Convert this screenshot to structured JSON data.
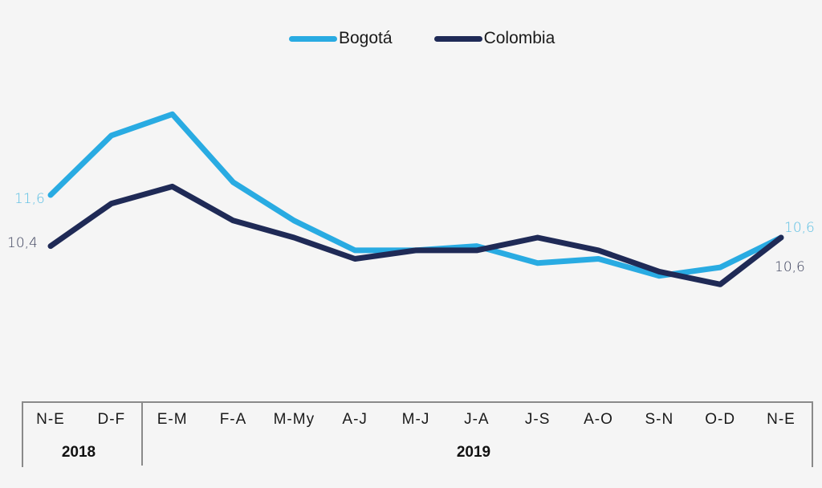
{
  "chart_data": {
    "type": "line",
    "title": "",
    "xlabel": "",
    "ylabel": "",
    "legend_position": "top-center",
    "grid": false,
    "categories": [
      "N-E",
      "D-F",
      "E-M",
      "F-A",
      "M-My",
      "A-J",
      "M-J",
      "J-A",
      "J-S",
      "A-O",
      "S-N",
      "O-D",
      "N-E"
    ],
    "year_groups": [
      {
        "label": "2018",
        "categories_count": 2
      },
      {
        "label": "2019",
        "categories_count": 11
      }
    ],
    "ylim": [
      8.5,
      14.5
    ],
    "series": [
      {
        "name": "Bogotá",
        "color": "#29abe2",
        "values": [
          11.6,
          13.0,
          13.5,
          11.9,
          11.0,
          10.3,
          10.3,
          10.4,
          10.0,
          10.1,
          9.7,
          9.9,
          10.6
        ],
        "labels": {
          "first": "11,6",
          "last": "10,6"
        }
      },
      {
        "name": "Colombia",
        "color": "#1f2a56",
        "values": [
          10.4,
          11.4,
          11.8,
          11.0,
          10.6,
          10.1,
          10.3,
          10.3,
          10.6,
          10.3,
          9.8,
          9.5,
          10.6
        ],
        "labels": {
          "first": "10,4",
          "last": "10,6"
        }
      }
    ]
  },
  "label_colors": {
    "Bogotá": "#5bbfe3",
    "Colombia": "#3a3f5a"
  }
}
